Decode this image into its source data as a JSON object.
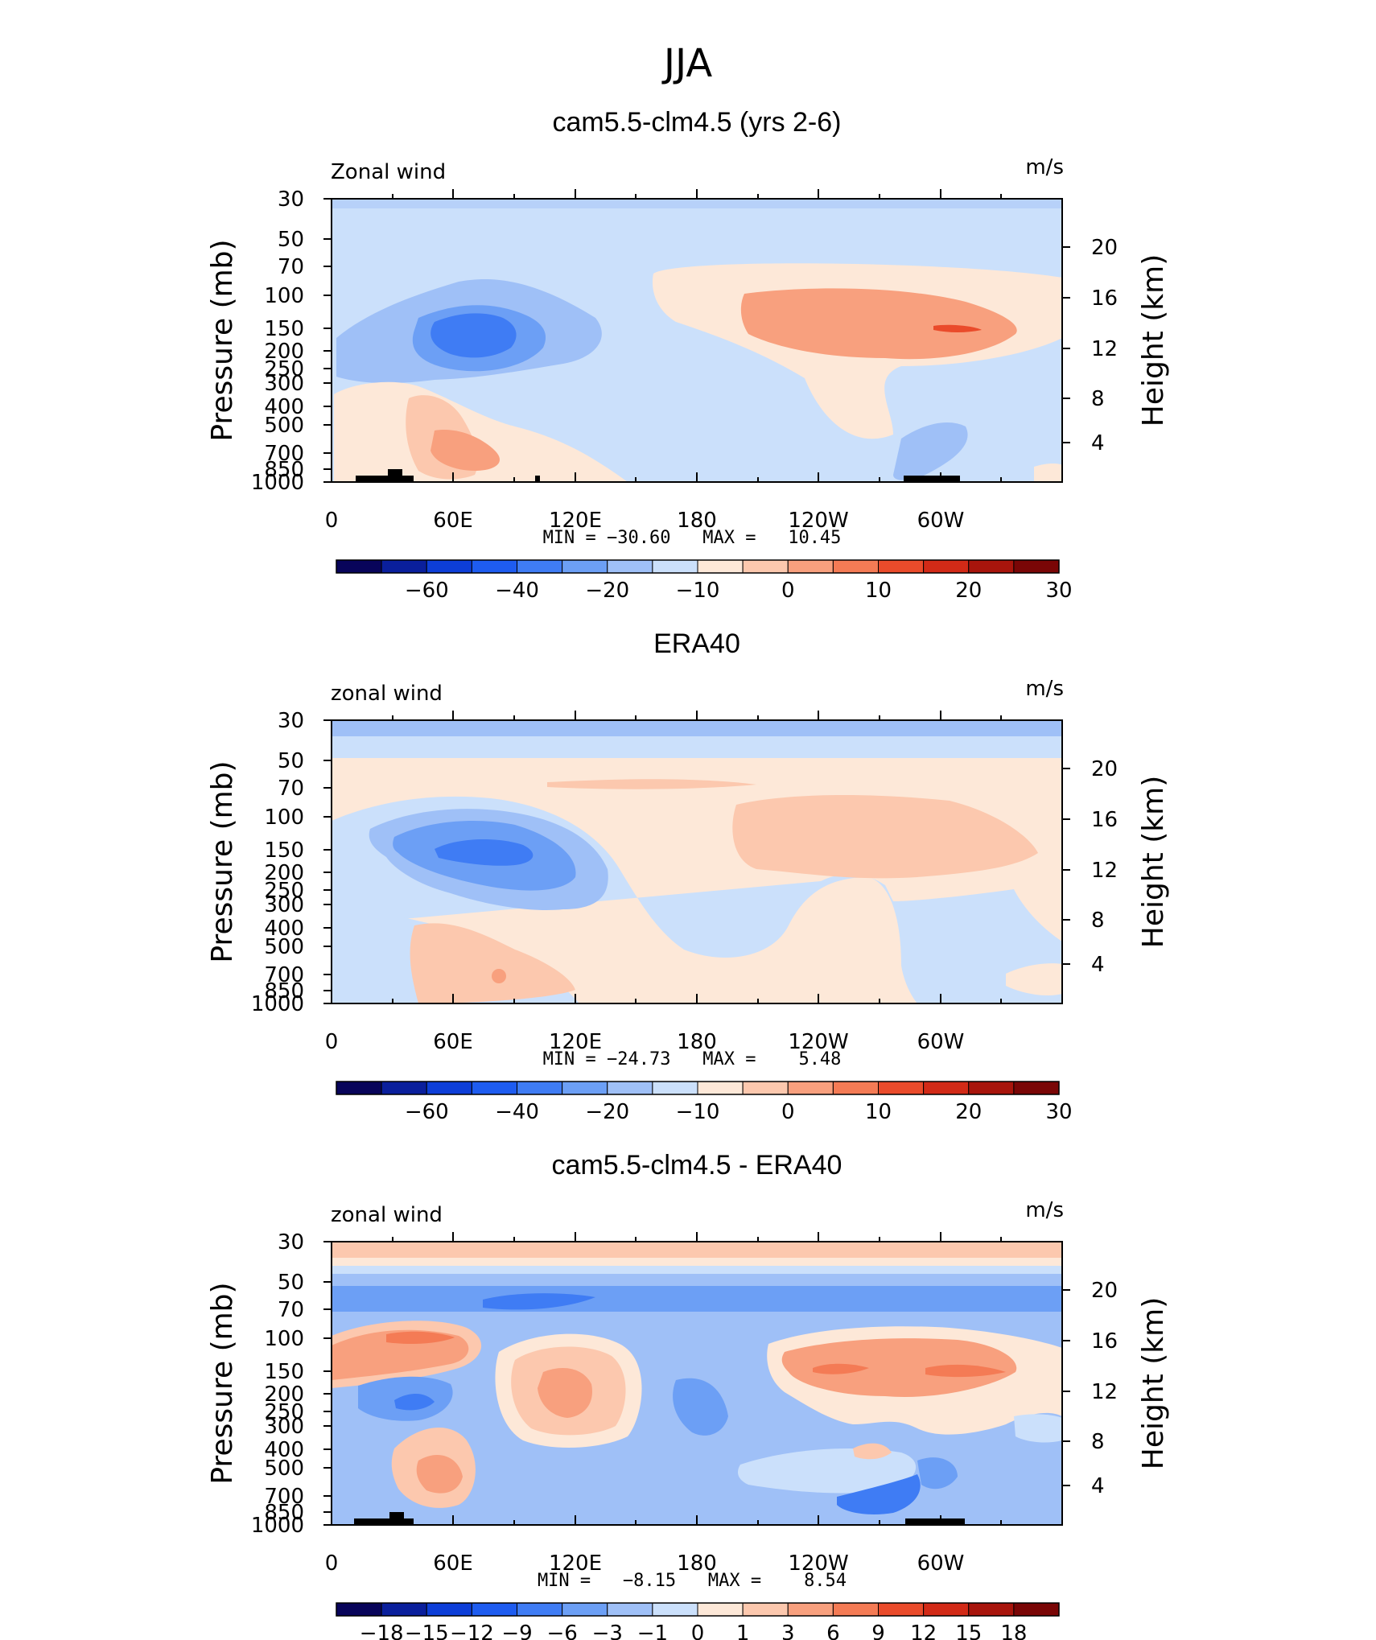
{
  "page_title": "JJA",
  "colorbar_levels_main": [
    "−60",
    "−40",
    "−20",
    "−10",
    "0",
    "10",
    "20",
    "30"
  ],
  "colorbar_levels_diff": [
    "−18",
    "−15",
    "−12",
    "−9",
    "−6",
    "−3",
    "−1",
    "0",
    "1",
    "3",
    "6",
    "9",
    "12",
    "15",
    "18"
  ],
  "colors_main": [
    "#08045a",
    "#0a1f9c",
    "#0d3ed8",
    "#1e5cf0",
    "#3f7cf4",
    "#6c9ff5",
    "#9fc0f7",
    "#cbe0fb",
    "#fde8d8",
    "#fcc8ae",
    "#f8a07e",
    "#f47b55",
    "#ea4b2b",
    "#d22a17",
    "#a8150c",
    "#7a0606"
  ],
  "colors_diff": [
    "#08045a",
    "#0a1f9c",
    "#0d3ed8",
    "#1e5cf0",
    "#3f7cf4",
    "#6c9ff5",
    "#9fc0f7",
    "#cbe0fb",
    "#fde8d8",
    "#fcc8ae",
    "#f8a07e",
    "#f47b55",
    "#ea4b2b",
    "#d22a17",
    "#a8150c",
    "#7a0606"
  ],
  "chart_data": [
    {
      "type": "heatmap",
      "title": "cam5.5-clm4.5 (yrs 2-6)",
      "left_label": "Zonal wind",
      "units": "m/s",
      "ylabel": "Pressure (mb)",
      "ylabel_right": "Height (km)",
      "pressure_ticks": [
        "30",
        "50",
        "70",
        "100",
        "150",
        "200",
        "250",
        "300",
        "400",
        "500",
        "700",
        "850",
        "1000"
      ],
      "height_ticks": [
        "20",
        "16",
        "12",
        "8",
        "4"
      ],
      "x_ticks": [
        "0",
        "60E",
        "120E",
        "180",
        "120W",
        "60W"
      ],
      "min_max": "MIN = −30.60   MAX =   10.45",
      "min": -30.6,
      "max": 10.45
    },
    {
      "type": "heatmap",
      "title": "ERA40",
      "left_label": "zonal wind",
      "units": "m/s",
      "ylabel": "Pressure (mb)",
      "ylabel_right": "Height (km)",
      "pressure_ticks": [
        "30",
        "50",
        "70",
        "100",
        "150",
        "200",
        "250",
        "300",
        "400",
        "500",
        "700",
        "850",
        "1000"
      ],
      "height_ticks": [
        "20",
        "16",
        "12",
        "8",
        "4"
      ],
      "x_ticks": [
        "0",
        "60E",
        "120E",
        "180",
        "120W",
        "60W"
      ],
      "min_max": "MIN = −24.73   MAX =    5.48",
      "min": -24.73,
      "max": 5.48
    },
    {
      "type": "heatmap",
      "title": "cam5.5-clm4.5 - ERA40",
      "left_label": "zonal wind",
      "units": "m/s",
      "ylabel": "Pressure (mb)",
      "ylabel_right": "Height (km)",
      "pressure_ticks": [
        "30",
        "50",
        "70",
        "100",
        "150",
        "200",
        "250",
        "300",
        "400",
        "500",
        "700",
        "850",
        "1000"
      ],
      "height_ticks": [
        "20",
        "16",
        "12",
        "8",
        "4"
      ],
      "x_ticks": [
        "0",
        "60E",
        "120E",
        "180",
        "120W",
        "60W"
      ],
      "min_max": "MIN =   −8.15   MAX =    8.54",
      "min": -8.15,
      "max": 8.54
    }
  ]
}
